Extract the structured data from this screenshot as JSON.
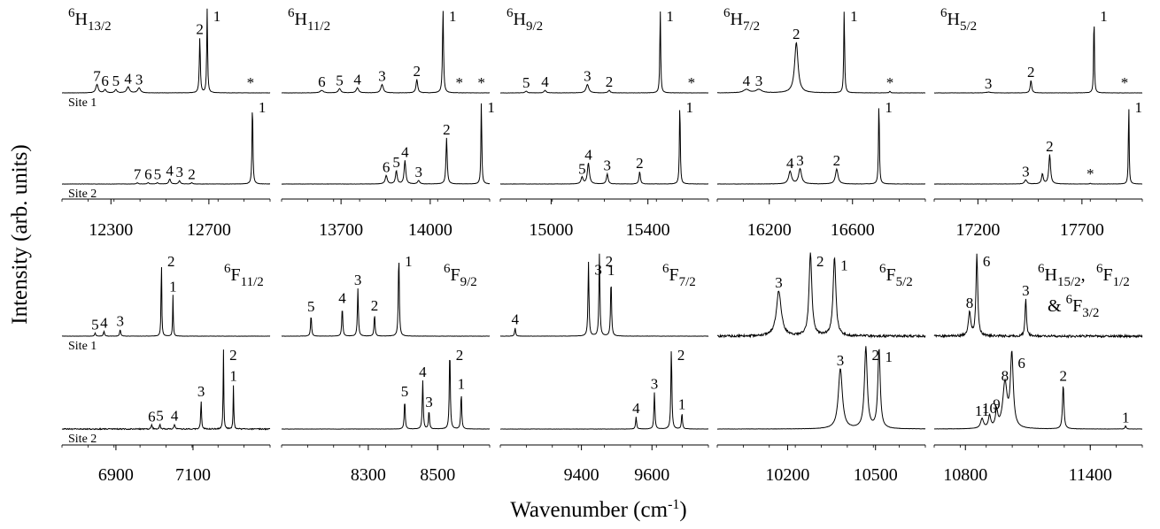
{
  "chart_data": {
    "type": "line",
    "ylabel": "Intensity (arb. units)",
    "xlabel": "Wavenumber (cm",
    "xlabel_sup": "-1",
    "xlabel_end": ")",
    "site_labels": [
      "Site 1",
      "Site 2"
    ],
    "panels": [
      {
        "state": "6H13/2",
        "state_label": [
          "6",
          "H",
          "13/2",
          ""
        ],
        "xlim": [
          12100,
          12950
        ],
        "ticks": [
          12300,
          12700
        ],
        "site1": {
          "peaks": [
            [
              12243,
              0.1,
              7,
              "7"
            ],
            [
              12276,
              0.04,
              6,
              "6"
            ],
            [
              12320,
              0.04,
              6,
              "5"
            ],
            [
              12370,
              0.07,
              8,
              "4"
            ],
            [
              12415,
              0.06,
              8,
              "3"
            ],
            [
              12663,
              0.66,
              3,
              "2"
            ],
            [
              12693,
              1.0,
              2.5,
              "1"
            ],
            [
              12870,
              0.0,
              3,
              "*"
            ]
          ]
        },
        "site2": {
          "peaks": [
            [
              12408,
              0.015,
              5,
              "7"
            ],
            [
              12452,
              0.015,
              5,
              "6"
            ],
            [
              12490,
              0.015,
              5,
              "5"
            ],
            [
              12540,
              0.06,
              5,
              "4"
            ],
            [
              12580,
              0.04,
              5,
              "3"
            ],
            [
              12630,
              0.015,
              5,
              "2"
            ],
            [
              12878,
              1.0,
              2.5,
              "1"
            ]
          ]
        }
      },
      {
        "state": "6H11/2",
        "state_label": [
          "6",
          "H",
          "11/2",
          ""
        ],
        "xlim": [
          13500,
          14200
        ],
        "ticks": [
          13700,
          14000
        ],
        "site1": {
          "peaks": [
            [
              13635,
              0.03,
              8,
              "6"
            ],
            [
              13695,
              0.05,
              6,
              "5"
            ],
            [
              13755,
              0.06,
              6,
              "4"
            ],
            [
              13838,
              0.1,
              6,
              "3"
            ],
            [
              13955,
              0.16,
              4,
              "2"
            ],
            [
              14043,
              1.0,
              2.5,
              "1"
            ],
            [
              14098,
              0.0,
              3,
              "*"
            ],
            [
              14172,
              0.0,
              3,
              "*"
            ]
          ]
        },
        "site2": {
          "peaks": [
            [
              13852,
              0.1,
              5,
              "6"
            ],
            [
              13886,
              0.16,
              4,
              "5"
            ],
            [
              13915,
              0.28,
              4,
              "4"
            ],
            [
              13961,
              0.04,
              5,
              "3"
            ],
            [
              14055,
              0.55,
              3,
              "2"
            ],
            [
              14172,
              1.0,
              2,
              "1"
            ]
          ]
        }
      },
      {
        "state": "6H9/2",
        "state_label": [
          "6",
          "H",
          "9/2",
          ""
        ],
        "xlim": [
          14790,
          15650
        ],
        "ticks": [
          15000,
          15400
        ],
        "site1": {
          "peaks": [
            [
              14897,
              0.02,
              6,
              "5"
            ],
            [
              14975,
              0.03,
              6,
              "4"
            ],
            [
              15150,
              0.1,
              8,
              "3"
            ],
            [
              15240,
              0.03,
              6,
              "2"
            ],
            [
              15451,
              1.0,
              2.5,
              "1"
            ],
            [
              15580,
              0.0,
              3,
              "*"
            ]
          ]
        },
        "site2": {
          "peaks": [
            [
              15128,
              0.08,
              6,
              "5"
            ],
            [
              15154,
              0.25,
              6,
              "4"
            ],
            [
              15232,
              0.12,
              5,
              "3"
            ],
            [
              15366,
              0.15,
              4,
              "2"
            ],
            [
              15532,
              1.0,
              2.5,
              "1"
            ]
          ]
        }
      },
      {
        "state": "6H7/2",
        "state_label": [
          "6",
          "H",
          "7/2",
          ""
        ],
        "xlim": [
          15950,
          16950
        ],
        "ticks": [
          16200,
          16600
        ],
        "site1": {
          "peaks": [
            [
              16090,
              0.04,
              20,
              "4"
            ],
            [
              16150,
              0.04,
              20,
              "3"
            ],
            [
              16330,
              0.6,
              12,
              "2"
            ],
            [
              16560,
              1.0,
              3,
              "1"
            ],
            [
              16780,
              0.02,
              4,
              "*"
            ]
          ]
        },
        "site2": {
          "peaks": [
            [
              16300,
              0.15,
              10,
              "4"
            ],
            [
              16348,
              0.18,
              10,
              "3"
            ],
            [
              16524,
              0.18,
              9,
              "2"
            ],
            [
              16727,
              1.0,
              3,
              "1"
            ]
          ]
        }
      },
      {
        "state": "6H5/2",
        "state_label": [
          "6",
          "H",
          "5/2",
          ""
        ],
        "xlim": [
          16990,
          17990
        ],
        "ticks": [
          17200,
          17700
        ],
        "site1": {
          "peaks": [
            [
              17250,
              0.01,
              15,
              "3"
            ],
            [
              17455,
              0.15,
              5,
              "2"
            ],
            [
              17758,
              1.0,
              2.5,
              "1"
            ],
            [
              17905,
              0.0,
              3,
              "*"
            ]
          ]
        },
        "site2": {
          "peaks": [
            [
              17430,
              0.05,
              8,
              "3"
            ],
            [
              17510,
              0.12,
              6,
              ""
            ],
            [
              17545,
              0.35,
              6,
              "2"
            ],
            [
              17740,
              0.01,
              3,
              "*"
            ],
            [
              17925,
              1.0,
              2.5,
              "1"
            ]
          ]
        }
      },
      {
        "state": "6F11/2",
        "state_label": [
          "6",
          "F",
          "11/2",
          ""
        ],
        "xlim": [
          6760,
          7300
        ],
        "ticks": [
          6900,
          7100
        ],
        "site1": {
          "peaks": [
            [
              6846,
              0.04,
              2,
              "5"
            ],
            [
              6869,
              0.06,
              2,
              "4"
            ],
            [
              6911,
              0.08,
              2,
              "3"
            ],
            [
              7018,
              1.0,
              1.2,
              "2"
            ],
            [
              7048,
              0.5,
              1.2,
              "1"
            ]
          ]
        },
        "site2": {
          "peaks": [
            [
              6993,
              0.05,
              2,
              "6"
            ],
            [
              7014,
              0.06,
              2,
              "5"
            ],
            [
              7052,
              0.06,
              2,
              "4"
            ],
            [
              7121,
              0.36,
              1.5,
              "3"
            ],
            [
              7179,
              1.0,
              1.2,
              "2"
            ],
            [
              7205,
              0.55,
              1.2,
              "1"
            ]
          ]
        }
      },
      {
        "state": "6F9/2",
        "state_label": [
          "6",
          "F",
          "9/2",
          ""
        ],
        "xlim": [
          8050,
          8650
        ],
        "ticks": [
          8300,
          8500
        ],
        "site1": {
          "peaks": [
            [
              8135,
              0.26,
              2,
              "5"
            ],
            [
              8225,
              0.36,
              2,
              "4"
            ],
            [
              8270,
              0.58,
              2,
              "3"
            ],
            [
              8318,
              0.27,
              2,
              "2"
            ],
            [
              8388,
              1.0,
              2,
              "1"
            ]
          ]
        },
        "site2": {
          "peaks": [
            [
              8405,
              0.36,
              2,
              "5"
            ],
            [
              8457,
              0.6,
              2,
              "4"
            ],
            [
              8475,
              0.23,
              2,
              "3"
            ],
            [
              8535,
              1.0,
              2,
              "2"
            ],
            [
              8568,
              0.45,
              2,
              "1"
            ]
          ]
        }
      },
      {
        "state": "6F7/2",
        "state_label": [
          "6",
          "F",
          "7/2",
          ""
        ],
        "xlim": [
          9170,
          9760
        ],
        "ticks": [
          9400,
          9600
        ],
        "site1": {
          "peaks": [
            [
              9212,
              0.1,
              2,
              "4"
            ],
            [
              9420,
              0.9,
              2,
              "3"
            ],
            [
              9451,
              1.0,
              2,
              "2"
            ],
            [
              9484,
              0.7,
              2,
              "1"
            ]
          ]
        },
        "site2": {
          "peaks": [
            [
              9555,
              0.15,
              2,
              "4"
            ],
            [
              9607,
              0.45,
              2,
              "3"
            ],
            [
              9655,
              1.0,
              2,
              "2"
            ],
            [
              9685,
              0.2,
              2,
              "1"
            ]
          ]
        }
      },
      {
        "state": "6F5/2",
        "state_label": [
          "6",
          "F",
          "5/2",
          ""
        ],
        "xlim": [
          9960,
          10670
        ],
        "ticks": [
          10200,
          10500
        ],
        "site1": {
          "peaks": [
            [
              10170,
              0.55,
              12,
              "3"
            ],
            [
              10278,
              1.0,
              7,
              "2"
            ],
            [
              10360,
              0.95,
              7,
              "1"
            ]
          ]
        },
        "site2": {
          "peaks": [
            [
              10380,
              0.74,
              10,
              "3"
            ],
            [
              10467,
              1.0,
              7,
              "2"
            ],
            [
              10512,
              0.98,
              6,
              "1"
            ]
          ]
        }
      },
      {
        "state": "6H15/2, 6F1/2 & 6F3/2",
        "state_label": [
          "6",
          "H",
          "15/2",
          ", "
        ],
        "state_label_2": [
          "6",
          "F",
          "1/2",
          ""
        ],
        "state_label_3": [
          "& ",
          "6",
          "F",
          "3/2"
        ],
        "xlim": [
          10650,
          11650
        ],
        "ticks": [
          10800,
          11400
        ],
        "site1": {
          "peaks": [
            [
              10820,
              0.3,
              8,
              "8"
            ],
            [
              10855,
              1.0,
              6,
              "6"
            ],
            [
              11090,
              0.45,
              5,
              "3"
            ]
          ]
        },
        "site2": {
          "peaks": [
            [
              10880,
              0.12,
              10,
              "11"
            ],
            [
              10916,
              0.15,
              8,
              "10"
            ],
            [
              10950,
              0.2,
              8,
              "9"
            ],
            [
              10990,
              0.55,
              15,
              "8"
            ],
            [
              11023,
              0.9,
              10,
              "6"
            ],
            [
              11270,
              0.55,
              5,
              "2"
            ],
            [
              11570,
              0.04,
              4,
              "1"
            ]
          ]
        }
      }
    ]
  }
}
